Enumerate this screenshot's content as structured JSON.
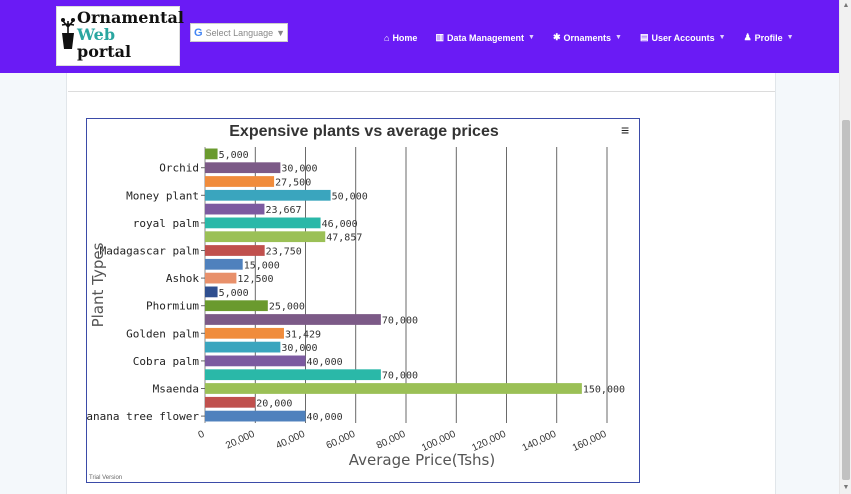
{
  "logo": {
    "line1": "Ornamental",
    "line2": "Web",
    "line3": "portal"
  },
  "translate": {
    "icon": "google-g-icon",
    "label": "Select Language",
    "arrow": "▼"
  },
  "nav": {
    "home": "Home",
    "data_management": "Data Management",
    "ornaments": "Ornaments",
    "user_accounts": "User Accounts",
    "profile": "Profile"
  },
  "colors": {
    "navbar": "#6a1bf5",
    "page_bg": "#ffffff",
    "side_bg": "#f4f8fb"
  },
  "chart_data": {
    "type": "bar",
    "orientation": "horizontal",
    "title": "Expensive plants vs average prices",
    "xlabel": "Average Price(Tshs)",
    "ylabel": "Plant Types",
    "xlim": [
      0,
      160000
    ],
    "x_ticks": [
      "0",
      "20,000",
      "40,000",
      "60,000",
      "80,000",
      "100,000",
      "120,000",
      "140,000",
      "160,000"
    ],
    "categories": [
      "Orchid",
      "Money plant",
      "royal palm",
      "Madagascar palm",
      "Ashok",
      "Phormium",
      "Golden palm",
      "Cobra palm",
      "Msaenda",
      "Banana tree flower"
    ],
    "bars": [
      {
        "value": 5000,
        "label": "5,000",
        "color": "#6a9a2e"
      },
      {
        "value": 30000,
        "label": "30,000",
        "color": "#7c5a87"
      },
      {
        "value": 27500,
        "label": "27,500",
        "color": "#f08c3c"
      },
      {
        "value": 50000,
        "label": "50,000",
        "color": "#3aa5be"
      },
      {
        "value": 23667,
        "label": "23,667",
        "color": "#7c5aa0"
      },
      {
        "value": 46000,
        "label": "46,000",
        "color": "#2ab8a8"
      },
      {
        "value": 47857,
        "label": "47,857",
        "color": "#9bc056"
      },
      {
        "value": 23750,
        "label": "23,750",
        "color": "#c0504d"
      },
      {
        "value": 15000,
        "label": "15,000",
        "color": "#4f81bd"
      },
      {
        "value": 12500,
        "label": "12,500",
        "color": "#e8906a"
      },
      {
        "value": 5000,
        "label": "5,000",
        "color": "#2f4f8f"
      },
      {
        "value": 25000,
        "label": "25,000",
        "color": "#6a9a2e"
      },
      {
        "value": 70000,
        "label": "70,000",
        "color": "#7c5a87"
      },
      {
        "value": 31429,
        "label": "31,429",
        "color": "#f08c3c"
      },
      {
        "value": 30000,
        "label": "30,000",
        "color": "#3aa5be"
      },
      {
        "value": 40000,
        "label": "40,000",
        "color": "#7c5aa0"
      },
      {
        "value": 70000,
        "label": "70,000",
        "color": "#2ab8a8"
      },
      {
        "value": 150000,
        "label": "150,000",
        "color": "#9bc056"
      },
      {
        "value": 20000,
        "label": "20,000",
        "color": "#c0504d"
      },
      {
        "value": 40000,
        "label": "40,000",
        "color": "#4f81bd"
      }
    ],
    "category_bar_index": [
      1,
      3,
      5,
      7,
      9,
      11,
      13,
      15,
      17,
      19
    ],
    "grid": true,
    "menu_icon": "hamburger-menu-icon",
    "watermark": "Trial Version"
  }
}
